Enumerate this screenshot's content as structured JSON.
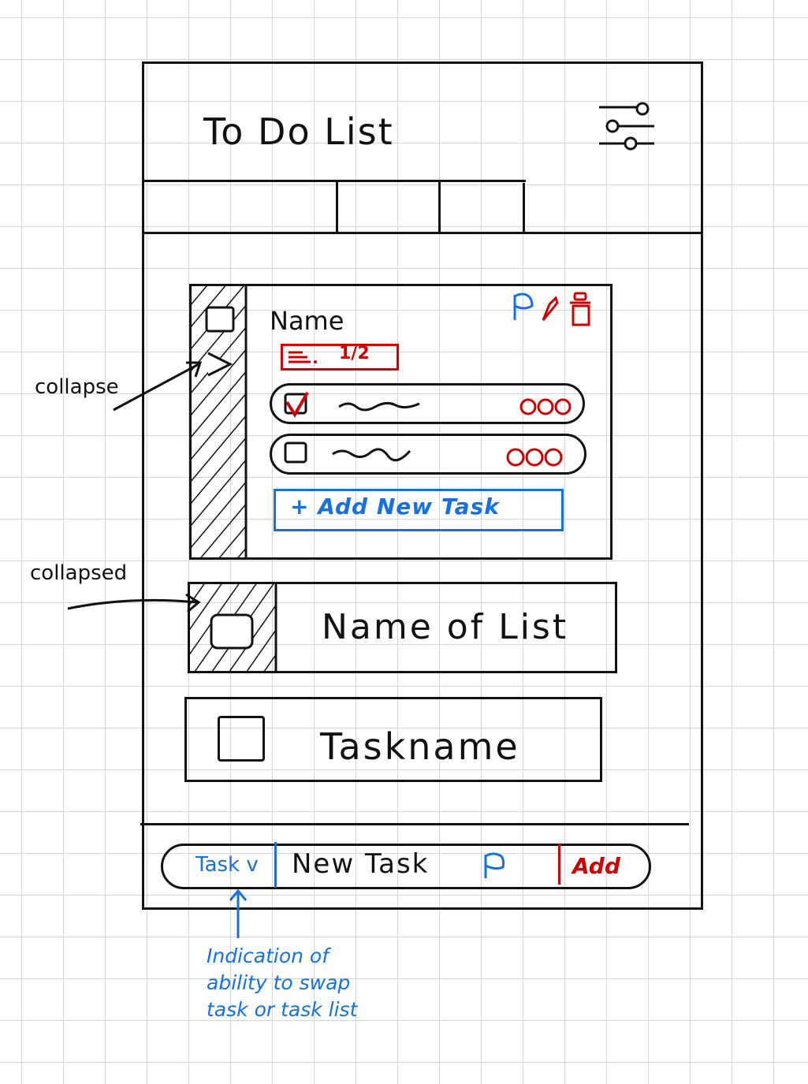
{
  "app": {
    "title": "To Do List",
    "settings_icon": "sliders-icon"
  },
  "list_card": {
    "name": "Name",
    "progress": "1/2",
    "action_icons": [
      "flag-icon",
      "edit-icon",
      "trash-icon"
    ],
    "tasks": [
      {
        "checked": true,
        "options_icon": "more-dots-icon"
      },
      {
        "checked": false,
        "options_icon": "more-dots-icon"
      }
    ],
    "add_task_label": "+ Add New Task"
  },
  "collapsed_list": {
    "name": "Name of List"
  },
  "task_item": {
    "name": "Taskname"
  },
  "bottom_bar": {
    "type_toggle": "Task v",
    "input_value": "New Task",
    "flag_icon": "flag-icon",
    "add_label": "Add"
  },
  "annotations": {
    "collapse": "collapse",
    "collapsed": "collapsed",
    "swap_note_lines": [
      "Indication of",
      "ability to swap",
      "task or task list"
    ]
  },
  "colors": {
    "ink": "#111111",
    "accent_blue": "#1670e0",
    "accent_red": "#d10000"
  }
}
